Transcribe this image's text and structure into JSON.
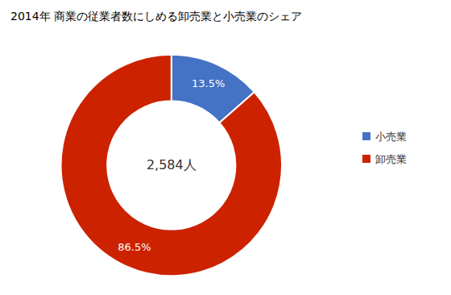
{
  "chart_data": {
    "type": "pie",
    "title": "2014年 商業の従業者数にしめる卸売業と小売業のシェア",
    "categories": [
      "小売業",
      "卸売業"
    ],
    "values": [
      13.5,
      86.5
    ],
    "value_labels": [
      "13.5%",
      "86.5%"
    ],
    "colors": [
      "#4472C4",
      "#CC2200"
    ],
    "data_labels": true,
    "annotations": [
      "2,584人"
    ],
    "legend": "right"
  }
}
